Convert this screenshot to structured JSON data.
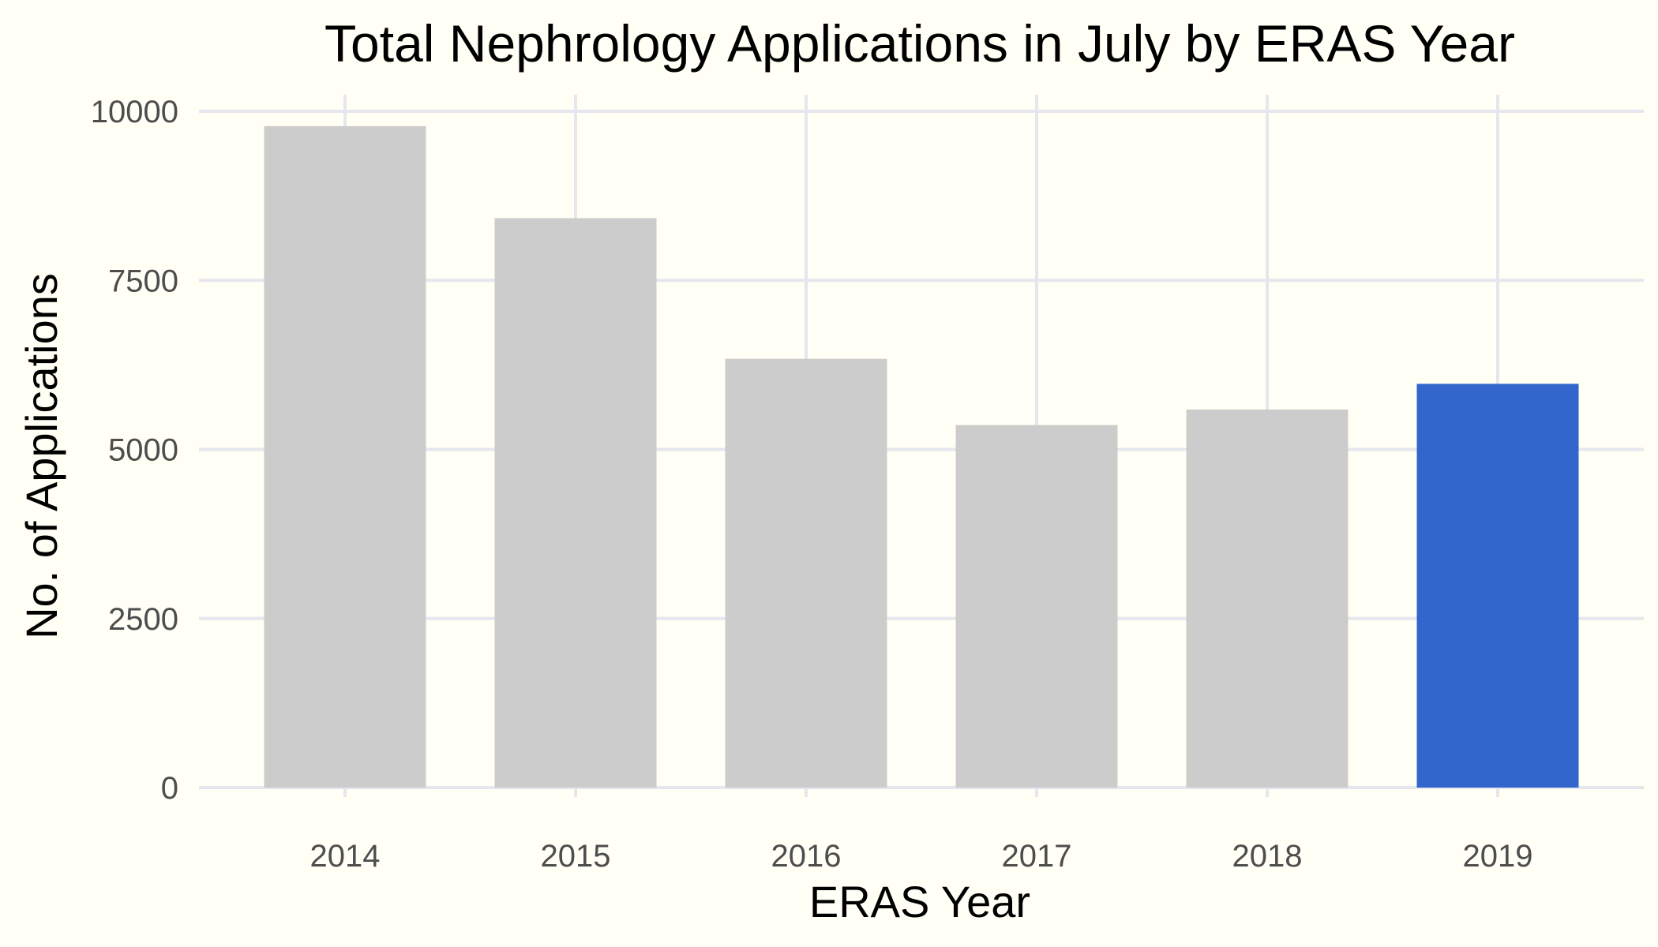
{
  "chart_data": {
    "type": "bar",
    "title": "Total Nephrology Applications in July by ERAS Year",
    "xlabel": "ERAS Year",
    "ylabel": "No. of Applications",
    "categories": [
      "2014",
      "2015",
      "2016",
      "2017",
      "2018",
      "2019"
    ],
    "values": [
      9780,
      8420,
      6340,
      5360,
      5590,
      5970
    ],
    "highlight_category": "2019",
    "ylim": [
      0,
      10000
    ],
    "yticks": [
      0,
      2500,
      5000,
      7500,
      10000
    ],
    "ytick_labels": [
      "0",
      "2500",
      "5000",
      "7500",
      "10000"
    ],
    "grid": true,
    "legend": "none",
    "colors": {
      "default_bar": "#cccccc",
      "highlight_bar": "#3366cc",
      "grid": "#e6e6ee",
      "background": "#fffff5"
    }
  }
}
